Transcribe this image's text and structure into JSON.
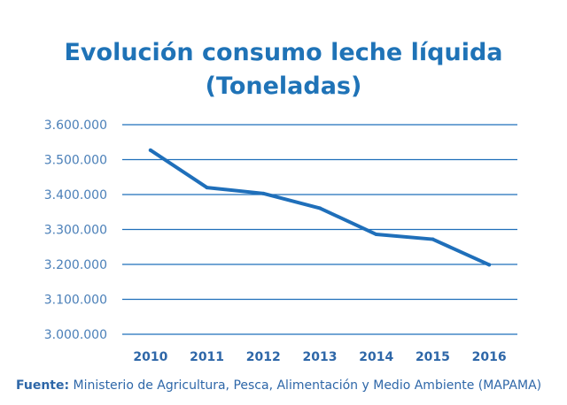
{
  "chart_data": {
    "type": "line",
    "title_line1": "Evolución consumo leche líquida",
    "title_line2": "(Toneladas)",
    "categories": [
      "2010",
      "2011",
      "2012",
      "2013",
      "2014",
      "2015",
      "2016"
    ],
    "series": [
      {
        "values": [
          3527000,
          3420000,
          3403000,
          3361000,
          3286000,
          3272000,
          3199000
        ]
      }
    ],
    "ylim": [
      3000000,
      3600000
    ],
    "yticks": [
      "3.000.000",
      "3.100.000",
      "3.200.000",
      "3.300.000",
      "3.400.000",
      "3.500.000",
      "3.600.000"
    ],
    "grid": true,
    "line_color": "#1f6fba",
    "grid_color": "#1f6fba"
  },
  "source": {
    "label": "Fuente:",
    "text": "Ministerio de Agricultura, Pesca, Alimentación y Medio Ambiente (MAPAMA)"
  }
}
